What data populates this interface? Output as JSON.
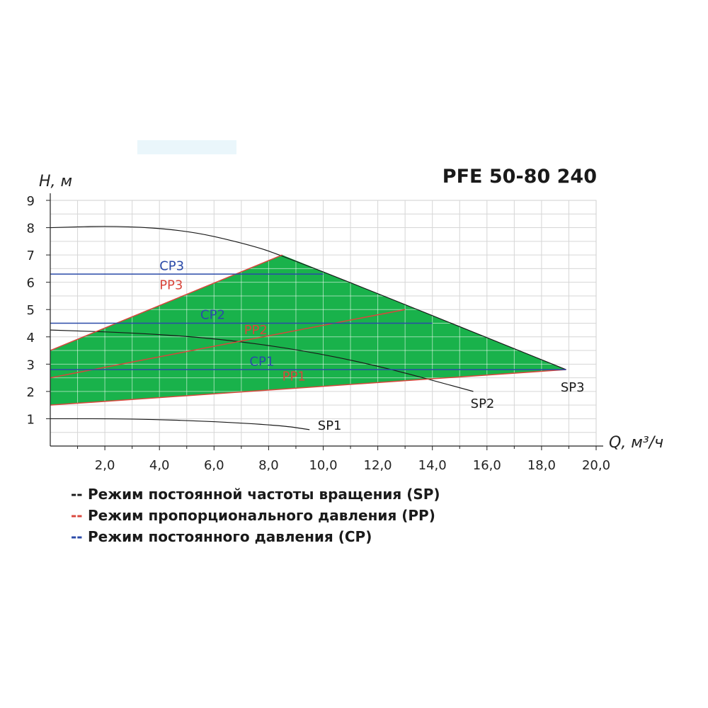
{
  "chart_data": {
    "type": "line",
    "title": "PFE 50-80 240",
    "ylabel": "H, м",
    "xlabel": "Q, м³/ч",
    "xlim": [
      0,
      20
    ],
    "ylim": [
      0,
      9
    ],
    "xticks": [
      "2,0",
      "4,0",
      "6,0",
      "8,0",
      "10,0",
      "12,0",
      "14,0",
      "16,0",
      "18,0",
      "20,0"
    ],
    "yticks": [
      "1",
      "2",
      "3",
      "4",
      "5",
      "6",
      "7",
      "8",
      "9"
    ],
    "grid": true,
    "operating_area": {
      "color": "#19b24b",
      "points": [
        [
          0,
          3.5
        ],
        [
          8.5,
          7.0
        ],
        [
          18.9,
          2.8
        ],
        [
          0,
          1.5
        ]
      ]
    },
    "series": [
      {
        "name": "SP3",
        "mode": "SP",
        "color": "#1a1a1a",
        "points": [
          [
            0,
            8.0
          ],
          [
            2.5,
            8.07
          ],
          [
            5.0,
            7.9
          ],
          [
            7.0,
            7.45
          ],
          [
            8.5,
            7.0
          ],
          [
            18.9,
            2.8
          ]
        ]
      },
      {
        "name": "SP2",
        "mode": "SP",
        "color": "#1a1a1a",
        "points": [
          [
            0,
            4.25
          ],
          [
            3.0,
            4.15
          ],
          [
            6.0,
            3.95
          ],
          [
            9.0,
            3.55
          ],
          [
            12.0,
            2.95
          ],
          [
            15.5,
            2.0
          ]
        ]
      },
      {
        "name": "SP1",
        "mode": "SP",
        "color": "#1a1a1a",
        "points": [
          [
            0,
            1.0
          ],
          [
            3.0,
            1.0
          ],
          [
            6.0,
            0.9
          ],
          [
            8.5,
            0.75
          ],
          [
            9.5,
            0.6
          ]
        ]
      },
      {
        "name": "PP3",
        "mode": "PP",
        "color": "#d9463c",
        "points": [
          [
            0,
            3.5
          ],
          [
            8.5,
            7.0
          ]
        ]
      },
      {
        "name": "PP2",
        "mode": "PP",
        "color": "#d9463c",
        "points": [
          [
            0,
            2.5
          ],
          [
            13.0,
            5.0
          ]
        ]
      },
      {
        "name": "PP1",
        "mode": "PP",
        "color": "#d9463c",
        "points": [
          [
            0,
            1.5
          ],
          [
            18.9,
            2.8
          ]
        ]
      },
      {
        "name": "CP3",
        "mode": "CP",
        "color": "#2a4aa8",
        "points": [
          [
            0,
            6.3
          ],
          [
            10.0,
            6.3
          ]
        ]
      },
      {
        "name": "CP2",
        "mode": "CP",
        "color": "#2a4aa8",
        "points": [
          [
            0,
            4.5
          ],
          [
            14.0,
            4.5
          ]
        ]
      },
      {
        "name": "CP1",
        "mode": "CP",
        "color": "#2a4aa8",
        "points": [
          [
            0,
            2.8
          ],
          [
            18.9,
            2.8
          ]
        ]
      }
    ],
    "annotations": [
      {
        "text": "CP3",
        "x": 4.0,
        "y": 6.45,
        "color": "#2a4aa8"
      },
      {
        "text": "PP3",
        "x": 4.0,
        "y": 5.75,
        "color": "#d9463c"
      },
      {
        "text": "CP2",
        "x": 5.5,
        "y": 4.65,
        "color": "#2a4aa8"
      },
      {
        "text": "PP2",
        "x": 7.1,
        "y": 4.1,
        "color": "#d9463c"
      },
      {
        "text": "CP1",
        "x": 7.3,
        "y": 2.95,
        "color": "#2a4aa8"
      },
      {
        "text": "PP1",
        "x": 8.5,
        "y": 2.4,
        "color": "#d9463c"
      },
      {
        "text": "SP3",
        "x": 18.7,
        "y": 2.0,
        "color": "#1a1a1a"
      },
      {
        "text": "SP2",
        "x": 15.4,
        "y": 1.4,
        "color": "#1a1a1a"
      },
      {
        "text": "SP1",
        "x": 9.8,
        "y": 0.6,
        "color": "#1a1a1a"
      }
    ]
  },
  "legend": [
    {
      "dash": "--",
      "text": "Режим постоянной частоты вращения (SP)",
      "color": "#1a1a1a"
    },
    {
      "dash": "--",
      "text": "Режим пропорционального давления (PP)",
      "color": "#d9463c"
    },
    {
      "dash": "--",
      "text": "Режим постоянного давления (CP)",
      "color": "#2a4aa8"
    }
  ]
}
